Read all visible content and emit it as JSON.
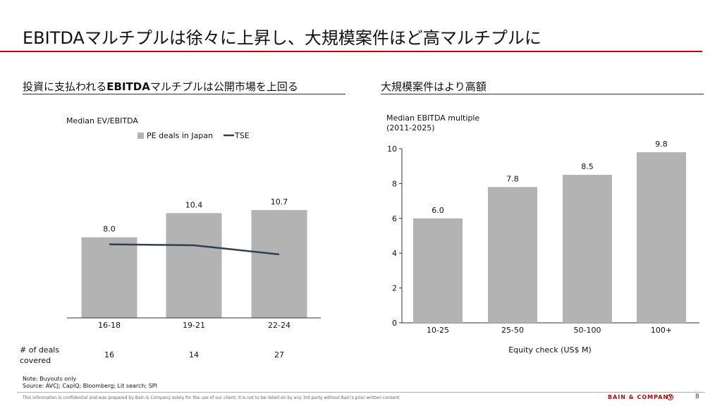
{
  "title": "EBITDAマルチプルは徐々に上昇し、大規模案件ほど高マルチプルに",
  "left_section": {
    "title_prefix": "投資に支払われる",
    "title_bold": "EBITDA",
    "title_suffix": "マルチプルは公開市場を上回る"
  },
  "right_section": {
    "title": "大規模案件はより高額"
  },
  "notes": {
    "note": "Note: Buyouts only",
    "source": "Source: AVCJ; CapIQ; Bloomberg; Lit search; SPI"
  },
  "footer": {
    "disclaimer": "This information is confidential and was prepared by Bain & Company solely for the use of our client; it is not to be relied on by any 3rd party without Bain's prior written consent",
    "brand": "BAIN & COMPANY",
    "page_number": "8"
  },
  "colors": {
    "bar": "#b3b3b3",
    "line": "#2e3f52",
    "accent": "#cc0000"
  },
  "chart_data": [
    {
      "type": "bar",
      "title": "Median EV/EBITDA",
      "categories": [
        "16-18",
        "19-21",
        "22-24"
      ],
      "series": [
        {
          "name": "PE deals in Japan",
          "type": "bar",
          "values": [
            8.0,
            10.4,
            10.7
          ],
          "labels": [
            "8.0",
            "10.4",
            "10.7"
          ]
        },
        {
          "name": "TSE",
          "type": "line",
          "values": [
            7.3,
            7.2,
            6.3
          ]
        }
      ],
      "ylim": [
        0,
        12
      ],
      "legend": "top",
      "grid": false,
      "deals_row_label": "# of deals covered",
      "deals_row_label_lines": [
        "# of deals",
        "covered"
      ],
      "deals_counts": [
        "16",
        "14",
        "27"
      ]
    },
    {
      "type": "bar",
      "title_lines": [
        "Median EBITDA multiple",
        "(2011-2025)"
      ],
      "categories": [
        "10-25",
        "25-50",
        "50-100",
        "100+"
      ],
      "values": [
        6.0,
        7.8,
        8.5,
        9.8
      ],
      "labels": [
        "6.0",
        "7.8",
        "8.5",
        "9.8"
      ],
      "xlabel": "Equity check (US$ M)",
      "ylim": [
        0,
        10
      ],
      "yticks": [
        "0",
        "2",
        "4",
        "6",
        "8",
        "10"
      ],
      "grid": false
    }
  ]
}
